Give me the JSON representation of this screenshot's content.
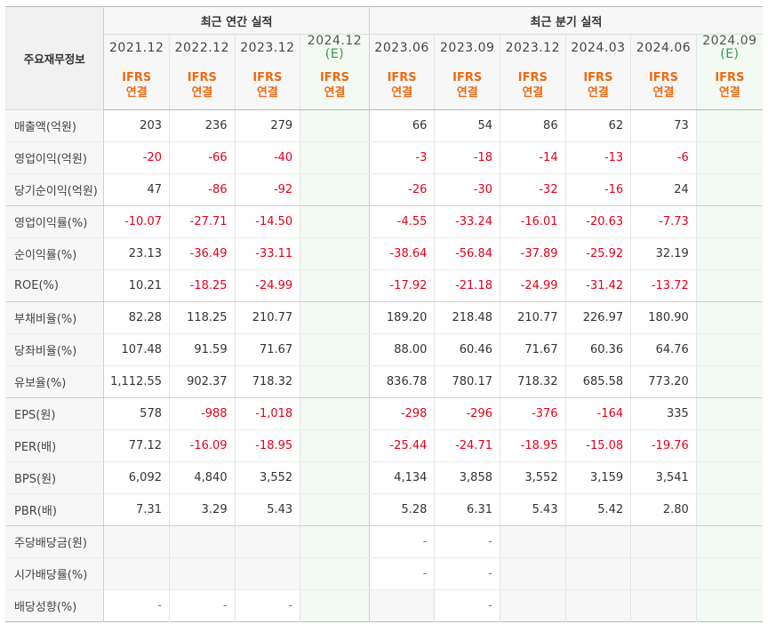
{
  "header": {
    "row_label": "주요재무정보",
    "annual_title": "최근 연간 실적",
    "quarter_title": "최근 분기 실적",
    "periods": [
      "2021.12",
      "2022.12",
      "2023.12",
      "2024.12",
      "2023.06",
      "2023.09",
      "2023.12",
      "2024.03",
      "2024.06",
      "2024.09"
    ],
    "estimate_mark": "(E)",
    "basis_line1": "IFRS",
    "basis_line2": "연결"
  },
  "rows": [
    {
      "label": "매출액(억원)",
      "values": [
        "203",
        "236",
        "279",
        "",
        "66",
        "54",
        "86",
        "62",
        "73",
        ""
      ]
    },
    {
      "label": "영업이익(억원)",
      "values": [
        "-20",
        "-66",
        "-40",
        "",
        "-3",
        "-18",
        "-14",
        "-13",
        "-6",
        ""
      ]
    },
    {
      "label": "당기순이익(억원)",
      "values": [
        "47",
        "-86",
        "-92",
        "",
        "-26",
        "-30",
        "-32",
        "-16",
        "24",
        ""
      ]
    },
    {
      "label": "영업이익률(%)",
      "values": [
        "-10.07",
        "-27.71",
        "-14.50",
        "",
        "-4.55",
        "-33.24",
        "-16.01",
        "-20.63",
        "-7.73",
        ""
      ]
    },
    {
      "label": "순이익률(%)",
      "values": [
        "23.13",
        "-36.49",
        "-33.11",
        "",
        "-38.64",
        "-56.84",
        "-37.89",
        "-25.92",
        "32.19",
        ""
      ]
    },
    {
      "label": "ROE(%)",
      "values": [
        "10.21",
        "-18.25",
        "-24.99",
        "",
        "-17.92",
        "-21.18",
        "-24.99",
        "-31.42",
        "-13.72",
        ""
      ]
    },
    {
      "label": "부채비율(%)",
      "values": [
        "82.28",
        "118.25",
        "210.77",
        "",
        "189.20",
        "218.48",
        "210.77",
        "226.97",
        "180.90",
        ""
      ]
    },
    {
      "label": "당좌비율(%)",
      "values": [
        "107.48",
        "91.59",
        "71.67",
        "",
        "88.00",
        "60.46",
        "71.67",
        "60.36",
        "64.76",
        ""
      ]
    },
    {
      "label": "유보율(%)",
      "values": [
        "1,112.55",
        "902.37",
        "718.32",
        "",
        "836.78",
        "780.17",
        "718.32",
        "685.58",
        "773.20",
        ""
      ]
    },
    {
      "label": "EPS(원)",
      "values": [
        "578",
        "-988",
        "-1,018",
        "",
        "-298",
        "-296",
        "-376",
        "-164",
        "335",
        ""
      ]
    },
    {
      "label": "PER(배)",
      "values": [
        "77.12",
        "-16.09",
        "-18.95",
        "",
        "-25.44",
        "-24.71",
        "-18.95",
        "-15.08",
        "-19.76",
        ""
      ]
    },
    {
      "label": "BPS(원)",
      "values": [
        "6,092",
        "4,840",
        "3,552",
        "",
        "4,134",
        "3,858",
        "3,552",
        "3,159",
        "3,541",
        ""
      ]
    },
    {
      "label": "PBR(배)",
      "values": [
        "7.31",
        "3.29",
        "5.43",
        "",
        "5.28",
        "6.31",
        "5.43",
        "5.42",
        "2.80",
        ""
      ]
    },
    {
      "label": "주당배당금(원)",
      "values": [
        "",
        "",
        "",
        "",
        "-",
        "-",
        "",
        "",
        "",
        ""
      ]
    },
    {
      "label": "시가배당률(%)",
      "values": [
        "",
        "",
        "",
        "",
        "-",
        "-",
        "",
        "",
        "",
        ""
      ]
    },
    {
      "label": "배당성향(%)",
      "values": [
        "-",
        "-",
        "-",
        "",
        "",
        "-",
        "",
        "",
        "",
        ""
      ]
    }
  ],
  "colors": {
    "negative": "#e3001b",
    "basis": "#ee6a12",
    "estimate": "#2f9b49"
  }
}
